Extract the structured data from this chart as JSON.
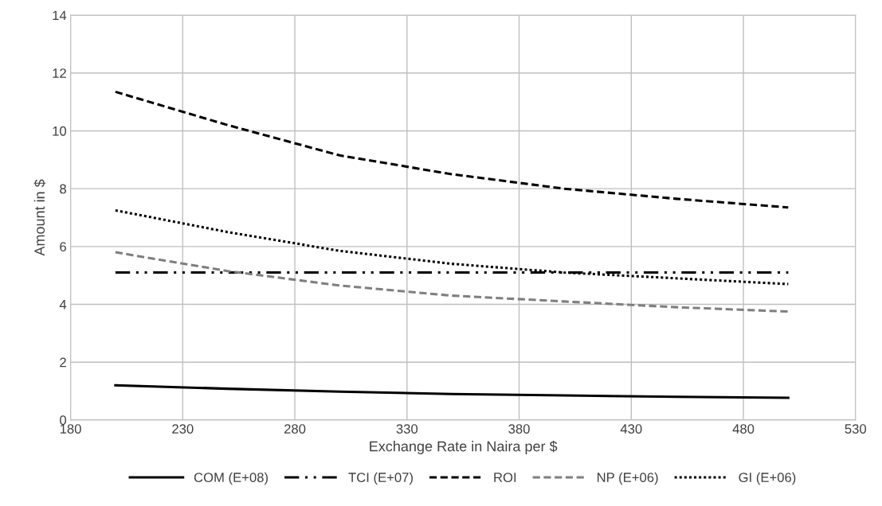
{
  "chart_data": {
    "type": "line",
    "xlabel": "Exchange Rate in Naira per $",
    "ylabel": "Amount in $",
    "x": [
      200,
      250,
      300,
      350,
      400,
      450,
      500
    ],
    "series": [
      {
        "name": "COM (E+08)",
        "color": "#000000",
        "line_style": "solid",
        "values": [
          1.2,
          1.08,
          0.98,
          0.9,
          0.85,
          0.8,
          0.77
        ]
      },
      {
        "name": "TCI (E+07)",
        "color": "#000000",
        "line_style": "dashdotdot",
        "values": [
          5.1,
          5.1,
          5.1,
          5.1,
          5.1,
          5.1,
          5.1
        ]
      },
      {
        "name": "ROI",
        "color": "#000000",
        "line_style": "dashed",
        "values": [
          11.35,
          10.2,
          9.15,
          8.5,
          8.0,
          7.65,
          7.35
        ]
      },
      {
        "name": "NP (E+06)",
        "color": "#7f7f7f",
        "line_style": "dashed",
        "values": [
          5.8,
          5.15,
          4.65,
          4.3,
          4.1,
          3.9,
          3.75
        ]
      },
      {
        "name": "GI (E+06)",
        "color": "#000000",
        "line_style": "dotted",
        "values": [
          7.25,
          6.5,
          5.85,
          5.4,
          5.1,
          4.9,
          4.7
        ]
      }
    ],
    "xlim": [
      180,
      530
    ],
    "xticks": [
      180,
      230,
      280,
      330,
      380,
      430,
      480,
      530
    ],
    "ylim": [
      0,
      14
    ],
    "yticks": [
      0,
      2,
      4,
      6,
      8,
      10,
      12,
      14
    ],
    "grid": true,
    "legend": "bottom"
  }
}
